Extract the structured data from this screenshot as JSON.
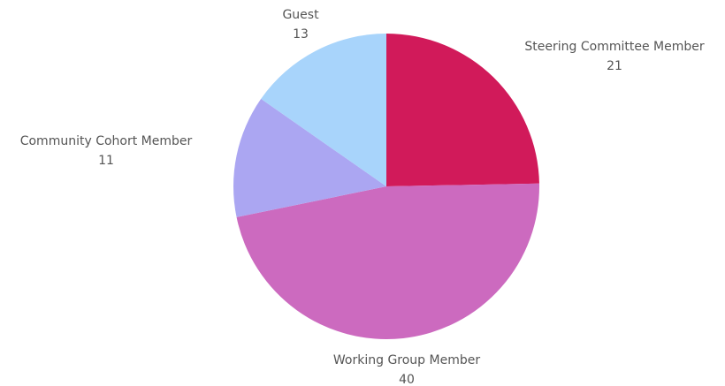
{
  "chart_data": {
    "type": "pie",
    "categories": [
      "Steering Committee Member",
      "Working Group Member",
      "Community Cohort Member",
      "Guest"
    ],
    "values": [
      21,
      40,
      11,
      13
    ],
    "colors": [
      "#d11a5a",
      "#cc6abf",
      "#aba6f2",
      "#a8d4fb"
    ]
  }
}
